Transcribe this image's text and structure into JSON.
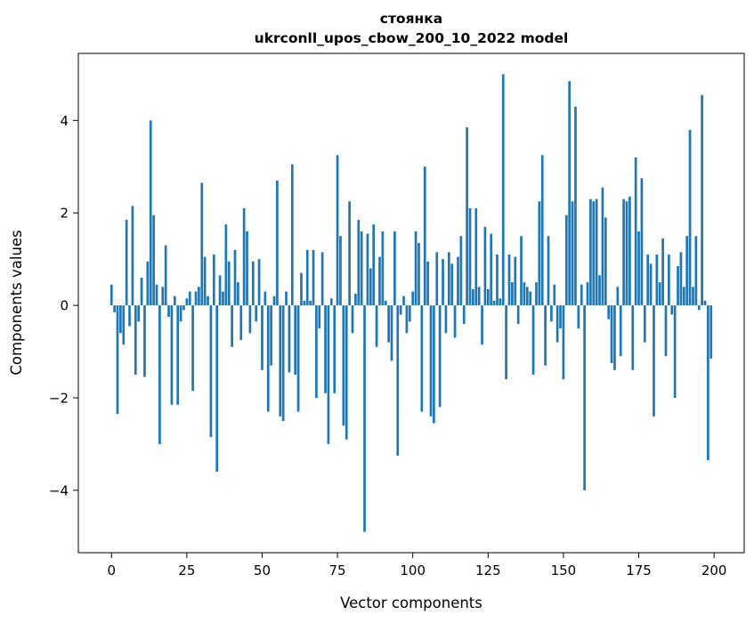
{
  "chart_data": {
    "type": "bar",
    "title": "стоянка",
    "subtitle": "ukrconll_upos_cbow_200_10_2022 model",
    "xlabel": "Vector components",
    "ylabel": "Components values",
    "bar_color": "#1f77b4",
    "axis_color": "#000000",
    "grid": false,
    "legend": false,
    "xlim": [
      -11,
      210
    ],
    "ylim": [
      -5.35,
      5.45
    ],
    "x_ticks": [
      0,
      25,
      50,
      75,
      100,
      125,
      150,
      175,
      200
    ],
    "y_ticks": [
      -4,
      -2,
      0,
      2,
      4
    ],
    "x_start": 0,
    "bar_width_units": 0.8,
    "values": [
      0.45,
      -0.15,
      -2.35,
      -0.6,
      -0.85,
      1.85,
      -0.45,
      2.15,
      -1.5,
      -0.35,
      0.6,
      -1.55,
      0.95,
      4.0,
      1.95,
      0.45,
      -3.0,
      0.4,
      1.3,
      -0.25,
      -2.15,
      0.2,
      -2.15,
      -0.35,
      -0.1,
      0.15,
      0.3,
      -1.85,
      0.3,
      0.4,
      2.65,
      1.05,
      0.2,
      -2.85,
      1.1,
      -3.6,
      0.65,
      0.3,
      1.75,
      0.95,
      -0.9,
      1.2,
      0.5,
      -0.75,
      2.1,
      1.6,
      -0.6,
      0.95,
      -0.35,
      1.0,
      -1.4,
      0.3,
      -2.3,
      -1.3,
      0.2,
      2.7,
      -2.4,
      -2.5,
      0.3,
      -1.45,
      3.05,
      -1.5,
      -2.3,
      0.7,
      0.1,
      1.2,
      0.1,
      1.2,
      -2.0,
      -0.5,
      1.15,
      -1.9,
      -3.0,
      0.15,
      -1.9,
      3.25,
      1.5,
      -2.6,
      -2.9,
      2.25,
      -0.6,
      0.25,
      1.85,
      1.6,
      -4.9,
      1.55,
      0.8,
      1.75,
      -0.9,
      1.05,
      1.6,
      0.1,
      -0.8,
      -1.2,
      1.6,
      -3.25,
      -0.2,
      0.2,
      -0.6,
      -0.35,
      0.3,
      1.6,
      1.35,
      -2.3,
      3.0,
      0.95,
      -2.4,
      -2.55,
      1.15,
      -2.2,
      1.0,
      -0.6,
      1.15,
      0.9,
      -0.7,
      1.05,
      1.5,
      -0.4,
      3.85,
      2.1,
      0.35,
      2.1,
      0.4,
      -0.85,
      1.7,
      0.35,
      1.55,
      0.1,
      1.1,
      0.15,
      5.0,
      -1.6,
      1.1,
      0.5,
      1.05,
      -0.4,
      1.5,
      0.5,
      0.4,
      0.3,
      -1.5,
      0.5,
      2.25,
      3.25,
      -1.3,
      1.5,
      -0.35,
      0.45,
      -0.8,
      -0.5,
      -1.6,
      1.95,
      4.85,
      2.25,
      4.3,
      -0.5,
      0.45,
      -4.0,
      0.5,
      2.3,
      2.25,
      2.3,
      0.65,
      2.55,
      1.9,
      -0.3,
      -1.25,
      -1.4,
      0.4,
      -1.1,
      2.3,
      2.25,
      2.35,
      -1.4,
      3.2,
      1.6,
      2.75,
      -0.8,
      1.1,
      0.9,
      -2.4,
      1.1,
      0.5,
      1.45,
      -1.1,
      1.1,
      -0.2,
      -2.0,
      0.85,
      1.15,
      0.4,
      1.5,
      3.8,
      0.4,
      1.5,
      -0.1,
      4.55,
      0.1,
      -3.35,
      -1.15
    ]
  }
}
